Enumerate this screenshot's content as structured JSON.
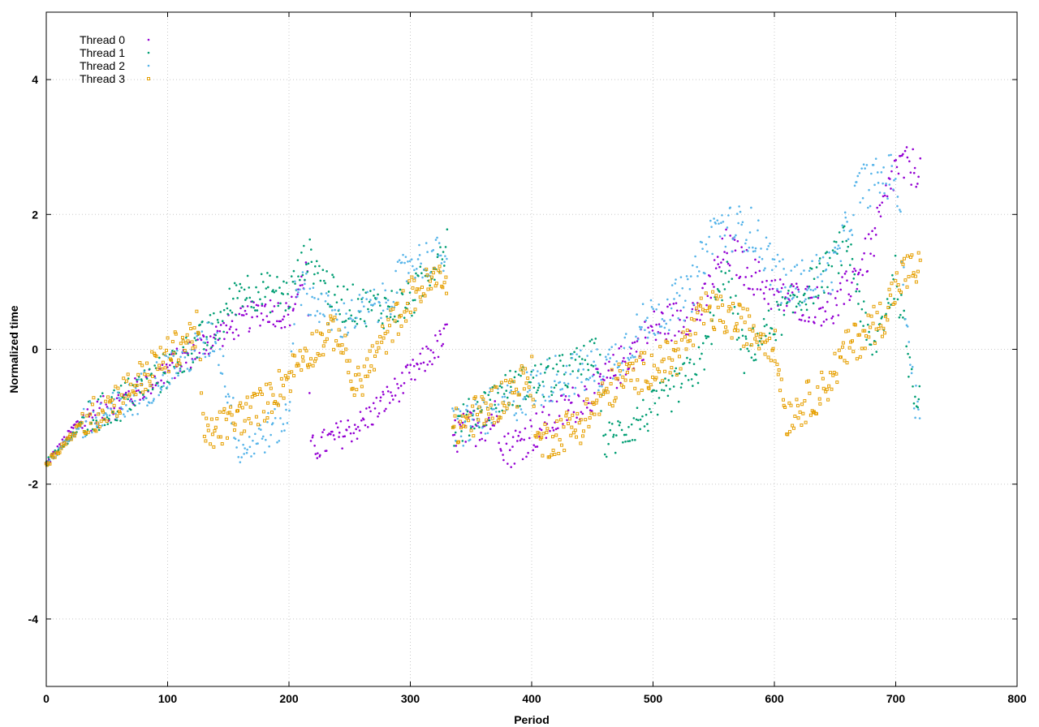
{
  "chart_data": {
    "type": "scatter",
    "title": "",
    "xlabel": "Period",
    "ylabel": "Normalized time",
    "xlim": [
      0,
      800
    ],
    "ylim": [
      -5,
      5
    ],
    "x_ticks": [
      0,
      100,
      200,
      300,
      400,
      500,
      600,
      700,
      800
    ],
    "y_ticks": [
      -4,
      -2,
      0,
      2,
      4
    ],
    "grid": true,
    "legend_position": "top-left",
    "series": [
      {
        "name": "Thread 0",
        "color": "#9400d3",
        "marker": "dot",
        "segments": [
          {
            "x0": 0,
            "x1": 330,
            "anchors": [
              [
                0,
                -1.7
              ],
              [
                25,
                -1.1
              ],
              [
                60,
                -0.8
              ],
              [
                100,
                -0.3
              ],
              [
                140,
                0.2
              ],
              [
                180,
                0.6
              ],
              [
                200,
                0.5
              ],
              [
                215,
                1.2
              ],
              [
                218,
                -1.5
              ],
              [
                260,
                -1.1
              ],
              [
                300,
                -0.4
              ],
              [
                330,
                0.2
              ]
            ],
            "spread": 0.22
          },
          {
            "x0": 335,
            "x1": 720,
            "anchors": [
              [
                335,
                -1.3
              ],
              [
                370,
                -1.0
              ],
              [
                380,
                -1.5
              ],
              [
                420,
                -1.0
              ],
              [
                460,
                -0.5
              ],
              [
                500,
                0.3
              ],
              [
                540,
                0.6
              ],
              [
                560,
                1.5
              ],
              [
                600,
                0.8
              ],
              [
                650,
                0.6
              ],
              [
                680,
                1.5
              ],
              [
                700,
                2.7
              ],
              [
                715,
                2.7
              ]
            ],
            "spread": 0.3
          }
        ]
      },
      {
        "name": "Thread 1",
        "color": "#009e73",
        "marker": "dot",
        "segments": [
          {
            "x0": 0,
            "x1": 330,
            "anchors": [
              [
                0,
                -1.7
              ],
              [
                30,
                -1.1
              ],
              [
                60,
                -0.8
              ],
              [
                100,
                -0.3
              ],
              [
                140,
                0.3
              ],
              [
                160,
                0.9
              ],
              [
                200,
                0.8
              ],
              [
                215,
                1.4
              ],
              [
                240,
                0.7
              ],
              [
                280,
                0.6
              ],
              [
                300,
                0.7
              ],
              [
                330,
                1.6
              ]
            ],
            "spread": 0.3
          },
          {
            "x0": 335,
            "x1": 720,
            "anchors": [
              [
                335,
                -1.2
              ],
              [
                380,
                -0.6
              ],
              [
                420,
                -0.4
              ],
              [
                455,
                -0.1
              ],
              [
                460,
                -1.4
              ],
              [
                500,
                -0.9
              ],
              [
                540,
                -0.2
              ],
              [
                560,
                1.2
              ],
              [
                575,
                -0.1
              ],
              [
                600,
                0.4
              ],
              [
                640,
                1.1
              ],
              [
                660,
                1.6
              ],
              [
                680,
                -0.1
              ],
              [
                700,
                1.1
              ],
              [
                715,
                -0.6
              ]
            ],
            "spread": 0.3
          }
        ]
      },
      {
        "name": "Thread 2",
        "color": "#56b4e9",
        "marker": "dot",
        "segments": [
          {
            "x0": 0,
            "x1": 330,
            "anchors": [
              [
                0,
                -1.7
              ],
              [
                30,
                -1.1
              ],
              [
                60,
                -0.9
              ],
              [
                100,
                -0.3
              ],
              [
                140,
                0.2
              ],
              [
                160,
                -1.5
              ],
              [
                200,
                -1.0
              ],
              [
                205,
                1.0
              ],
              [
                240,
                0.4
              ],
              [
                280,
                0.7
              ],
              [
                300,
                1.3
              ],
              [
                330,
                1.4
              ]
            ],
            "spread": 0.3
          },
          {
            "x0": 335,
            "x1": 720,
            "anchors": [
              [
                335,
                -1.2
              ],
              [
                380,
                -0.8
              ],
              [
                420,
                -0.4
              ],
              [
                460,
                -0.3
              ],
              [
                500,
                0.5
              ],
              [
                530,
                0.8
              ],
              [
                550,
                1.8
              ],
              [
                580,
                1.8
              ],
              [
                610,
                0.9
              ],
              [
                650,
                1.2
              ],
              [
                670,
                2.4
              ],
              [
                700,
                2.6
              ],
              [
                715,
                -0.8
              ]
            ],
            "spread": 0.35
          }
        ]
      },
      {
        "name": "Thread 3",
        "color": "#e69f00",
        "marker": "square",
        "segments": [
          {
            "x0": 0,
            "x1": 330,
            "anchors": [
              [
                0,
                -1.7
              ],
              [
                30,
                -1.1
              ],
              [
                60,
                -0.7
              ],
              [
                100,
                -0.1
              ],
              [
                125,
                0.3
              ],
              [
                130,
                -1.3
              ],
              [
                180,
                -0.8
              ],
              [
                200,
                -0.4
              ],
              [
                210,
                -0.1
              ],
              [
                240,
                0.3
              ],
              [
                255,
                -0.6
              ],
              [
                280,
                0.2
              ],
              [
                300,
                0.8
              ],
              [
                330,
                1.1
              ]
            ],
            "spread": 0.28
          },
          {
            "x0": 335,
            "x1": 720,
            "anchors": [
              [
                335,
                -1.2
              ],
              [
                370,
                -0.8
              ],
              [
                400,
                -0.4
              ],
              [
                405,
                -1.4
              ],
              [
                440,
                -1.1
              ],
              [
                470,
                -0.5
              ],
              [
                520,
                -0.1
              ],
              [
                545,
                0.6
              ],
              [
                580,
                0.3
              ],
              [
                600,
                0.1
              ],
              [
                610,
                -1.0
              ],
              [
                640,
                -0.6
              ],
              [
                660,
                0.0
              ],
              [
                690,
                0.5
              ],
              [
                705,
                1.1
              ],
              [
                720,
                1.2
              ]
            ],
            "spread": 0.3
          }
        ]
      }
    ]
  }
}
